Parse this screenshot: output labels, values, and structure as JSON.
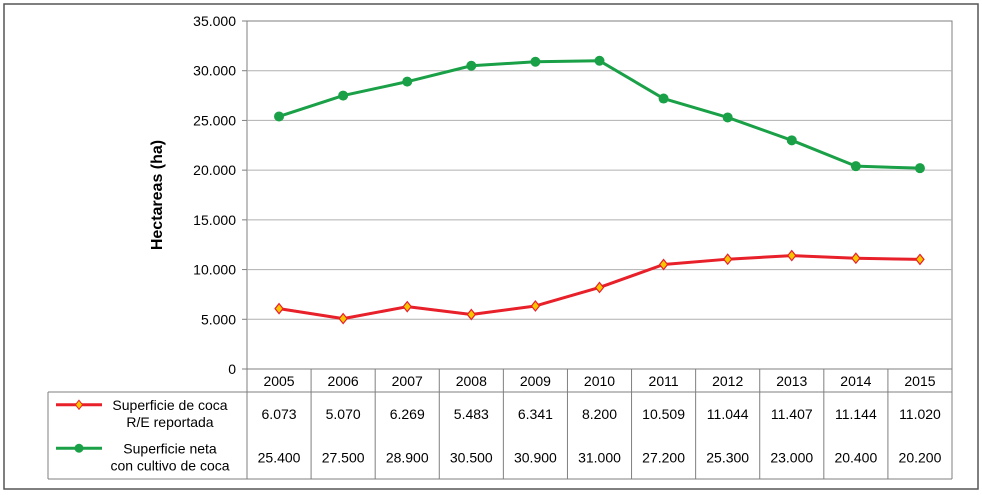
{
  "chart_data": {
    "type": "line",
    "title": "",
    "xlabel": "",
    "ylabel": "Hectareas (ha)",
    "ylim": [
      0,
      35000
    ],
    "yticks": [
      0,
      5000,
      10000,
      15000,
      20000,
      25000,
      30000,
      35000
    ],
    "ytick_labels": [
      "0",
      "5.000",
      "10.000",
      "15.000",
      "20.000",
      "25.000",
      "30.000",
      "35.000"
    ],
    "grid": true,
    "categories": [
      "2005",
      "2006",
      "2007",
      "2008",
      "2009",
      "2010",
      "2011",
      "2012",
      "2013",
      "2014",
      "2015"
    ],
    "series": [
      {
        "name": "Superficie de coca R/E reportada",
        "name_lines": [
          "Superficie de coca",
          "R/E reportada"
        ],
        "color": "#e8202a",
        "marker": "diamond",
        "marker_color": "#f7c600",
        "values": [
          6073,
          5070,
          6269,
          5483,
          6341,
          8200,
          10509,
          11044,
          11407,
          11144,
          11020
        ],
        "value_labels": [
          "6.073",
          "5.070",
          "6.269",
          "5.483",
          "6.341",
          "8.200",
          "10.509",
          "11.044",
          "11.407",
          "11.144",
          "11.020"
        ]
      },
      {
        "name": "Superficie neta con cultivo de coca",
        "name_lines": [
          "Superficie neta",
          "con cultivo de coca"
        ],
        "color": "#1aa047",
        "marker": "circle",
        "marker_color": "#1aa047",
        "values": [
          25400,
          27500,
          28900,
          30500,
          30900,
          31000,
          27200,
          25300,
          23000,
          20400,
          20200
        ],
        "value_labels": [
          "25.400",
          "27.500",
          "28.900",
          "30.500",
          "30.900",
          "31.000",
          "27.200",
          "25.300",
          "23.000",
          "20.400",
          "20.200"
        ]
      }
    ]
  }
}
